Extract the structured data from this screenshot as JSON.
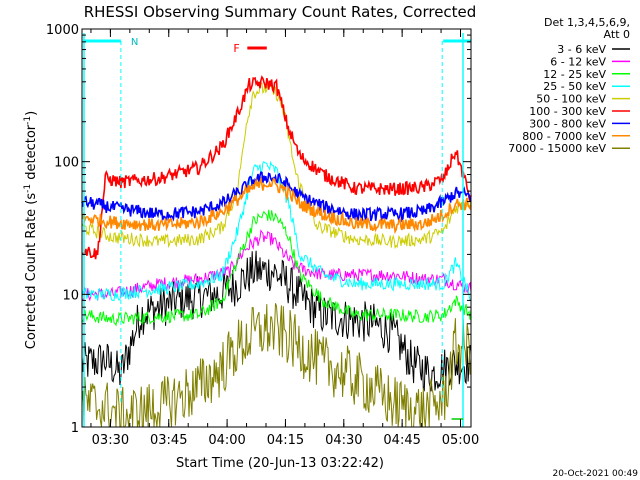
{
  "chart_data": {
    "type": "line",
    "title": "RHESSI Observing Summary Count Rates, Corrected",
    "xlabel": "Start Time (20-Jun-13 03:22:42)",
    "ylabel_main": "Corrected Count Rate (s",
    "ylabel_sup1": "-1",
    "ylabel_mid": " detector",
    "ylabel_sup2": "-1",
    "ylabel_end": ")",
    "yscale": "log",
    "ylim": [
      1,
      1000
    ],
    "xlim_min": [
      0,
      100
    ],
    "x_unit": "minutes after 03:22:42",
    "yticks": [
      {
        "value": 1,
        "label": "1"
      },
      {
        "value": 10,
        "label": "10"
      },
      {
        "value": 100,
        "label": "100"
      },
      {
        "value": 1000,
        "label": "1000"
      }
    ],
    "xticks": [
      {
        "value": 7.3,
        "label": "03:30"
      },
      {
        "value": 22.3,
        "label": "03:45"
      },
      {
        "value": 37.3,
        "label": "04:00"
      },
      {
        "value": 52.3,
        "label": "04:15"
      },
      {
        "value": 67.3,
        "label": "04:30"
      },
      {
        "value": 82.3,
        "label": "04:45"
      },
      {
        "value": 97.3,
        "label": "05:00"
      }
    ],
    "legend_header": [
      "Det 1,3,4,5,6,9,",
      "Att 0"
    ],
    "annotations": {
      "night_label": "N",
      "flare_label": "F",
      "timestamp": "20-Oct-2021 00:49",
      "flare_interval": [
        42.5,
        47.5
      ],
      "night_intervals": [
        [
          0,
          10
        ],
        [
          92.6,
          100
        ]
      ],
      "saa_marker": [
        95,
        98
      ]
    },
    "series": [
      {
        "name": "3 - 6 keV",
        "color": "#000000",
        "knots": [
          [
            0,
            3
          ],
          [
            6,
            3.2
          ],
          [
            10,
            2.5
          ],
          [
            15,
            7
          ],
          [
            20,
            8
          ],
          [
            25,
            9
          ],
          [
            30,
            9.5
          ],
          [
            35,
            10
          ],
          [
            40,
            12
          ],
          [
            44,
            15
          ],
          [
            49,
            15
          ],
          [
            53,
            12
          ],
          [
            57,
            9
          ],
          [
            62,
            7
          ],
          [
            68,
            6.5
          ],
          [
            75,
            6
          ],
          [
            80,
            5
          ],
          [
            85,
            3
          ],
          [
            90,
            2.5
          ],
          [
            95,
            3
          ],
          [
            100,
            3
          ]
        ]
      },
      {
        "name": "6 - 12 keV",
        "color": "#ff00ff",
        "knots": [
          [
            0,
            10
          ],
          [
            8,
            10
          ],
          [
            20,
            12
          ],
          [
            30,
            13
          ],
          [
            38,
            15
          ],
          [
            42,
            22
          ],
          [
            46,
            27
          ],
          [
            49,
            26
          ],
          [
            52,
            20
          ],
          [
            55,
            16
          ],
          [
            62,
            14
          ],
          [
            70,
            14
          ],
          [
            80,
            14
          ],
          [
            88,
            13
          ],
          [
            93,
            13
          ],
          [
            96,
            12
          ],
          [
            100,
            11
          ]
        ]
      },
      {
        "name": "12 - 25 keV",
        "color": "#00ff00",
        "knots": [
          [
            0,
            7
          ],
          [
            8,
            6.5
          ],
          [
            20,
            6.8
          ],
          [
            30,
            7
          ],
          [
            36,
            9
          ],
          [
            40,
            18
          ],
          [
            44,
            35
          ],
          [
            47,
            40
          ],
          [
            50,
            38
          ],
          [
            53,
            28
          ],
          [
            56,
            14
          ],
          [
            62,
            9
          ],
          [
            70,
            7
          ],
          [
            80,
            7
          ],
          [
            88,
            6.8
          ],
          [
            93,
            7
          ],
          [
            96,
            9
          ],
          [
            100,
            7
          ]
        ]
      },
      {
        "name": "25 - 50 keV",
        "color": "#00ffff",
        "knots": [
          [
            0,
            10
          ],
          [
            8,
            10
          ],
          [
            20,
            11
          ],
          [
            30,
            12
          ],
          [
            36,
            14
          ],
          [
            40,
            30
          ],
          [
            44,
            85
          ],
          [
            47,
            95
          ],
          [
            50,
            85
          ],
          [
            53,
            50
          ],
          [
            56,
            20
          ],
          [
            62,
            14
          ],
          [
            70,
            12
          ],
          [
            80,
            12
          ],
          [
            88,
            12
          ],
          [
            93,
            12
          ],
          [
            96,
            17
          ],
          [
            98,
            13
          ],
          [
            100,
            9
          ]
        ]
      },
      {
        "name": "50 - 100 keV",
        "color": "#cccc00",
        "knots": [
          [
            0,
            32
          ],
          [
            8,
            27
          ],
          [
            20,
            25
          ],
          [
            30,
            26
          ],
          [
            36,
            32
          ],
          [
            40,
            60
          ],
          [
            42,
            180
          ],
          [
            44,
            330
          ],
          [
            47,
            360
          ],
          [
            50,
            330
          ],
          [
            52,
            230
          ],
          [
            55,
            80
          ],
          [
            60,
            33
          ],
          [
            70,
            26
          ],
          [
            80,
            25
          ],
          [
            88,
            26
          ],
          [
            93,
            30
          ],
          [
            96,
            45
          ],
          [
            100,
            50
          ]
        ]
      },
      {
        "name": "100 - 300 keV",
        "color": "#ff0000",
        "knots": [
          [
            0,
            22
          ],
          [
            4,
            20
          ],
          [
            6,
            75
          ],
          [
            10,
            70
          ],
          [
            20,
            75
          ],
          [
            30,
            90
          ],
          [
            36,
            130
          ],
          [
            40,
            230
          ],
          [
            43,
            380
          ],
          [
            47,
            395
          ],
          [
            50,
            370
          ],
          [
            53,
            180
          ],
          [
            56,
            110
          ],
          [
            62,
            80
          ],
          [
            70,
            63
          ],
          [
            80,
            62
          ],
          [
            88,
            64
          ],
          [
            93,
            75
          ],
          [
            96,
            120
          ],
          [
            98,
            80
          ],
          [
            100,
            50
          ]
        ]
      },
      {
        "name": "300 - 800 keV",
        "color": "#0000ff",
        "knots": [
          [
            0,
            50
          ],
          [
            8,
            45
          ],
          [
            20,
            40
          ],
          [
            30,
            42
          ],
          [
            36,
            48
          ],
          [
            40,
            58
          ],
          [
            44,
            72
          ],
          [
            48,
            78
          ],
          [
            52,
            70
          ],
          [
            56,
            55
          ],
          [
            62,
            46
          ],
          [
            70,
            40
          ],
          [
            80,
            40
          ],
          [
            88,
            42
          ],
          [
            93,
            50
          ],
          [
            96,
            58
          ],
          [
            100,
            55
          ]
        ]
      },
      {
        "name": "800 - 7000 keV",
        "color": "#ff8800",
        "knots": [
          [
            0,
            38
          ],
          [
            8,
            35
          ],
          [
            20,
            33
          ],
          [
            30,
            35
          ],
          [
            36,
            42
          ],
          [
            40,
            52
          ],
          [
            44,
            64
          ],
          [
            48,
            70
          ],
          [
            52,
            62
          ],
          [
            56,
            48
          ],
          [
            62,
            40
          ],
          [
            70,
            34
          ],
          [
            80,
            33
          ],
          [
            88,
            34
          ],
          [
            93,
            40
          ],
          [
            96,
            48
          ],
          [
            100,
            48
          ]
        ]
      },
      {
        "name": "7000 - 15000 keV",
        "color": "#808000",
        "knots": [
          [
            0,
            1.5
          ],
          [
            6,
            1.4
          ],
          [
            10,
            1.2
          ],
          [
            20,
            1.4
          ],
          [
            30,
            2
          ],
          [
            36,
            2.8
          ],
          [
            40,
            4
          ],
          [
            44,
            5
          ],
          [
            48,
            5.5
          ],
          [
            52,
            5
          ],
          [
            56,
            4
          ],
          [
            62,
            3
          ],
          [
            68,
            2.5
          ],
          [
            74,
            2
          ],
          [
            80,
            1.5
          ],
          [
            88,
            1.3
          ],
          [
            93,
            1.6
          ],
          [
            96,
            4
          ],
          [
            100,
            4
          ]
        ]
      }
    ]
  }
}
